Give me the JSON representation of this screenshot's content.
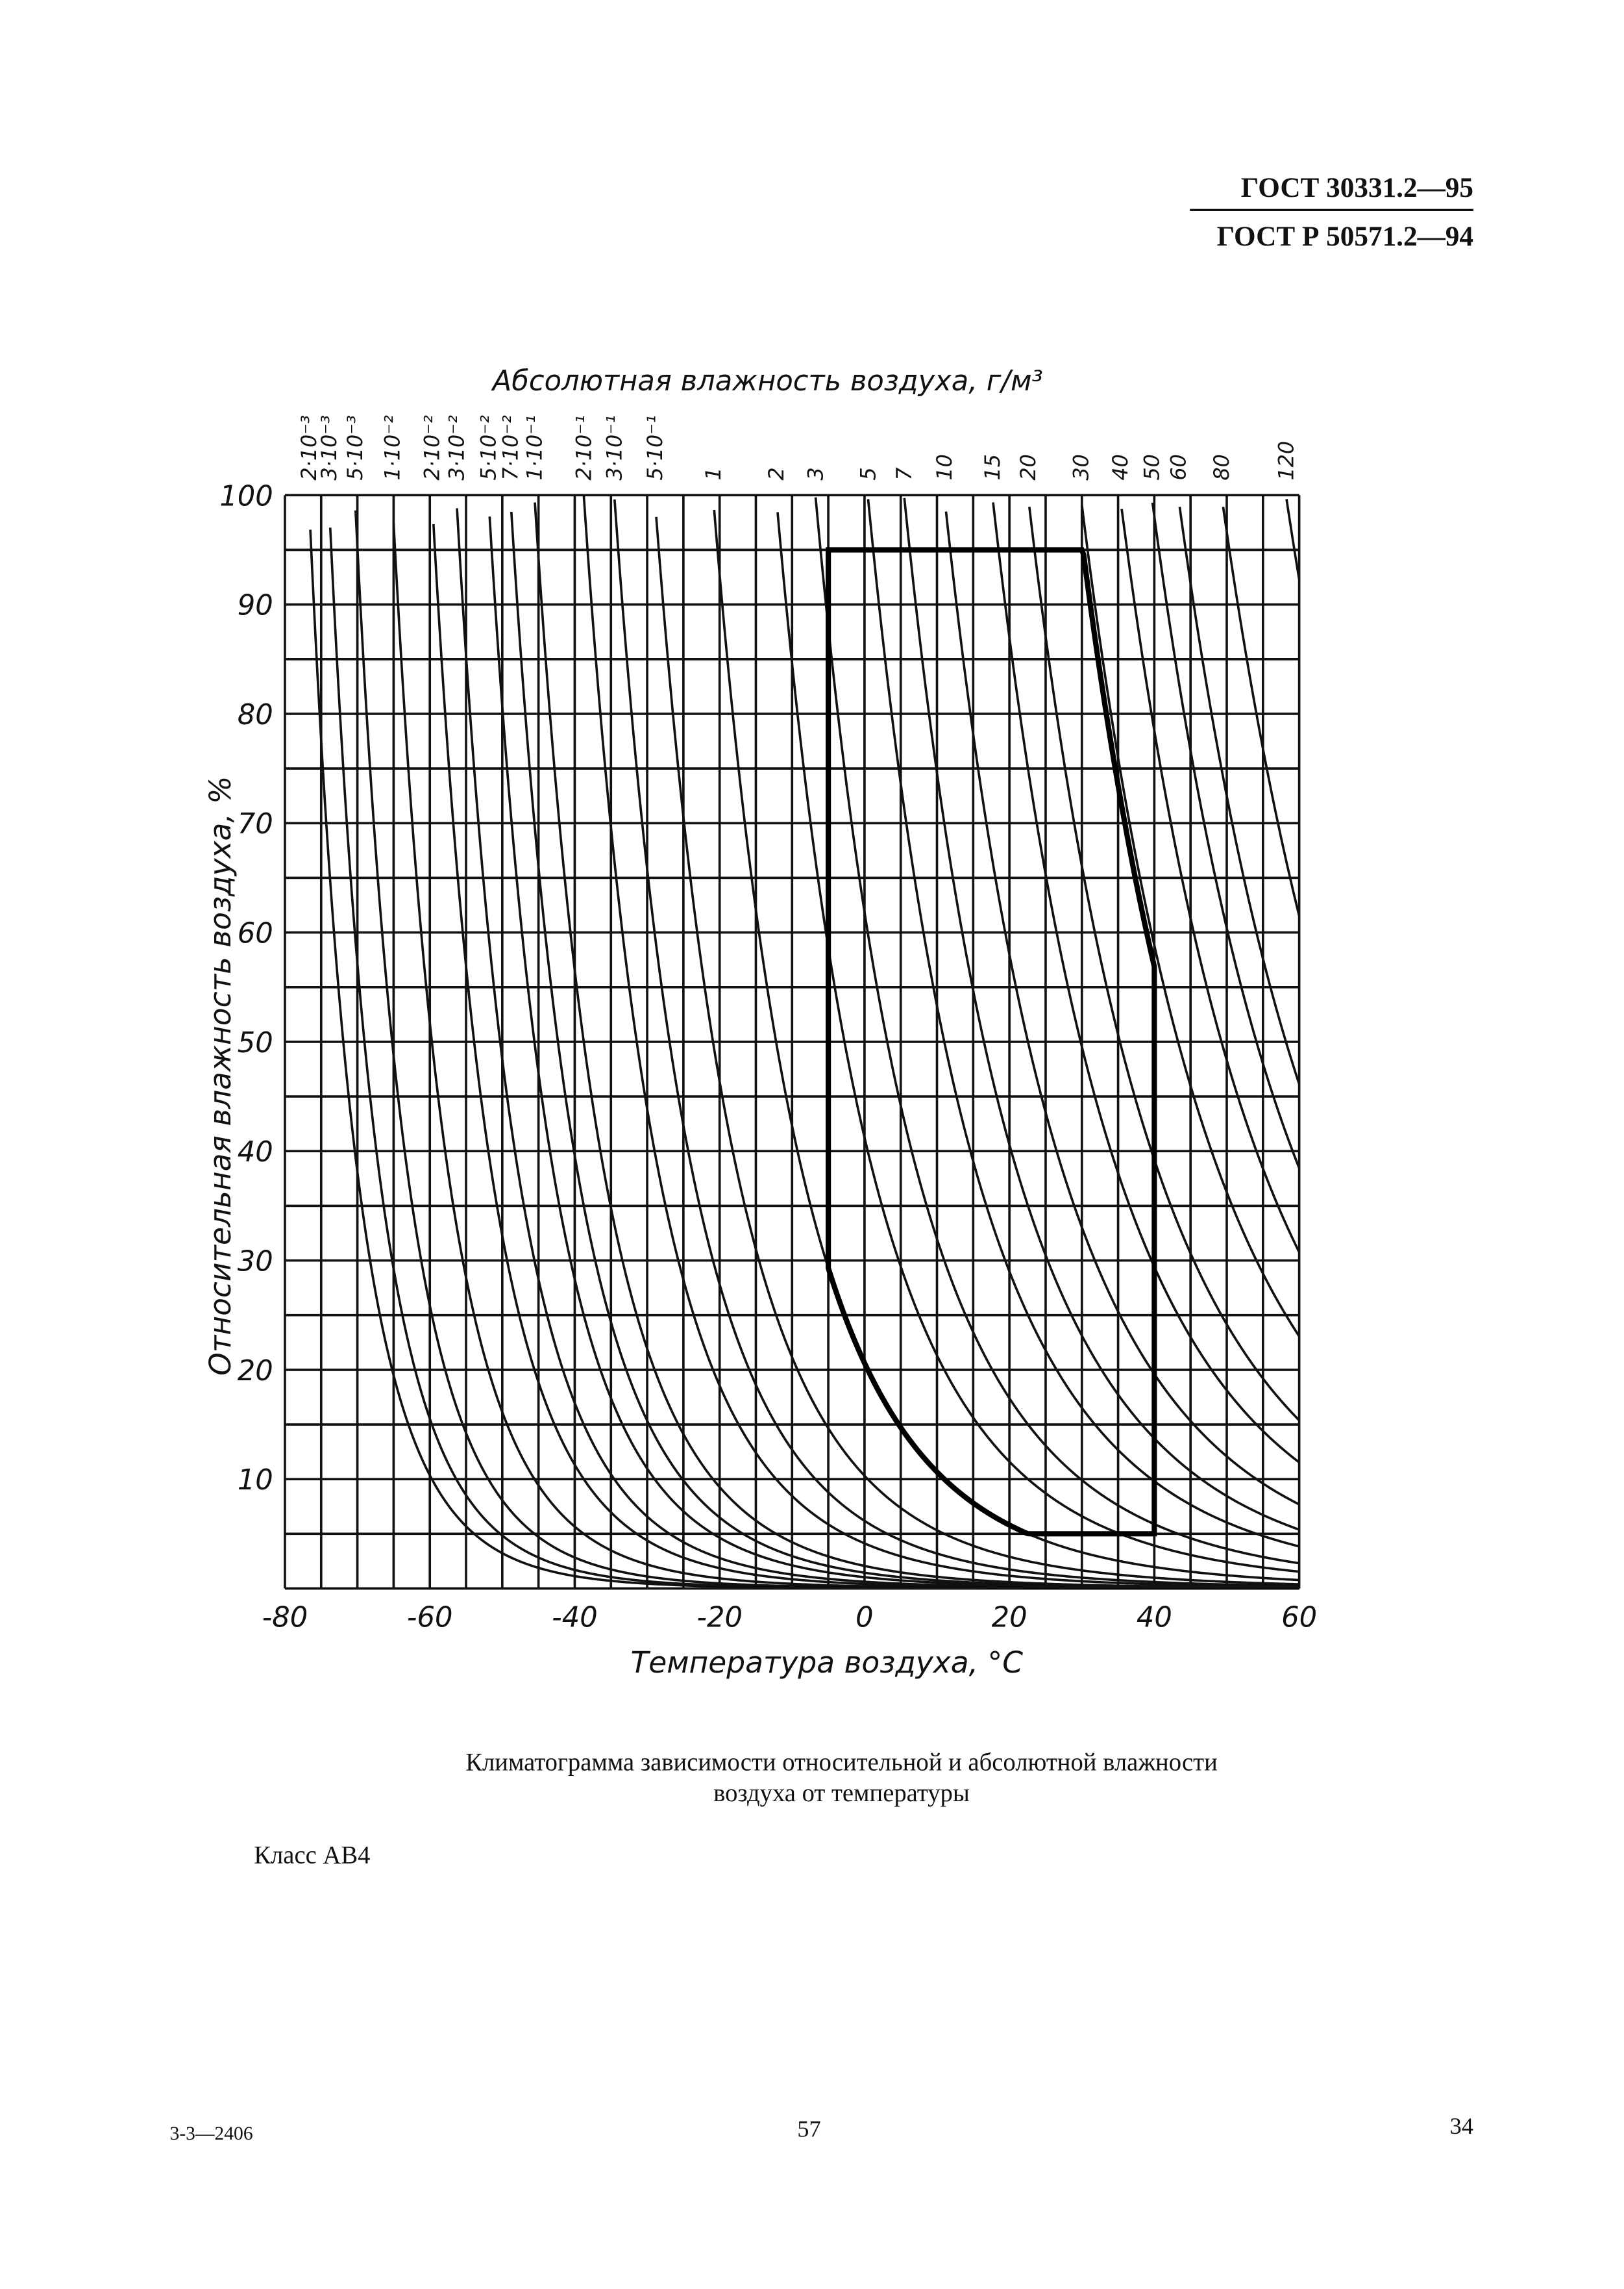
{
  "header": {
    "lines": [
      "ГОСТ 30331.2—95",
      "ГОСТ Р 50571.2—94"
    ]
  },
  "chart_data": {
    "type": "climatogram",
    "title": "Абсолютная влажность воздуха, г/м³",
    "x_label": "Температура воздуха, °С",
    "y_label": "Относительная влажность воздуха, %",
    "xlim": [
      -80,
      60
    ],
    "xticks": [
      -80,
      -60,
      -40,
      -20,
      0,
      20,
      40,
      60
    ],
    "ylim": [
      0,
      100
    ],
    "yticks": [
      10,
      20,
      30,
      40,
      50,
      60,
      70,
      80,
      90,
      100
    ],
    "xgrid": [
      -80,
      -75,
      -70,
      -65,
      -60,
      -55,
      -50,
      -45,
      -40,
      -35,
      -30,
      -25,
      -20,
      -15,
      -10,
      -5,
      0,
      5,
      10,
      15,
      20,
      25,
      30,
      35,
      40,
      45,
      50,
      55,
      60
    ],
    "ygrid": [
      0,
      5,
      10,
      15,
      20,
      25,
      30,
      35,
      40,
      45,
      50,
      55,
      60,
      65,
      70,
      75,
      80,
      85,
      90,
      95,
      100
    ],
    "isolines": [
      {
        "value": 0.002,
        "label": "2·10⁻³"
      },
      {
        "value": 0.003,
        "label": "3·10⁻³"
      },
      {
        "value": 0.005,
        "label": "5·10⁻³"
      },
      {
        "value": 0.01,
        "label": "1·10⁻²"
      },
      {
        "value": 0.02,
        "label": "2·10⁻²"
      },
      {
        "value": 0.03,
        "label": "3·10⁻²"
      },
      {
        "value": 0.05,
        "label": "5·10⁻²"
      },
      {
        "value": 0.07,
        "label": "7·10⁻²"
      },
      {
        "value": 0.1,
        "label": "1·10⁻¹"
      },
      {
        "value": 0.2,
        "label": "2·10⁻¹"
      },
      {
        "value": 0.3,
        "label": "3·10⁻¹"
      },
      {
        "value": 0.5,
        "label": "5·10⁻¹"
      },
      1,
      2,
      3,
      5,
      7,
      10,
      15,
      20,
      30,
      40,
      50,
      60,
      80,
      120
    ],
    "region": {
      "tmin": -5,
      "tmax": 40,
      "rhmin": 5,
      "rhmax": 95,
      "abs_min": 1,
      "abs_max": 29
    }
  },
  "caption": [
    "Климатограмма зависимости относительной и абсолютной влажности",
    "воздуха от температуры"
  ],
  "class_label": "Класс АВ4",
  "footer": {
    "left": "3-3—2406",
    "center": "57",
    "right": "34"
  }
}
